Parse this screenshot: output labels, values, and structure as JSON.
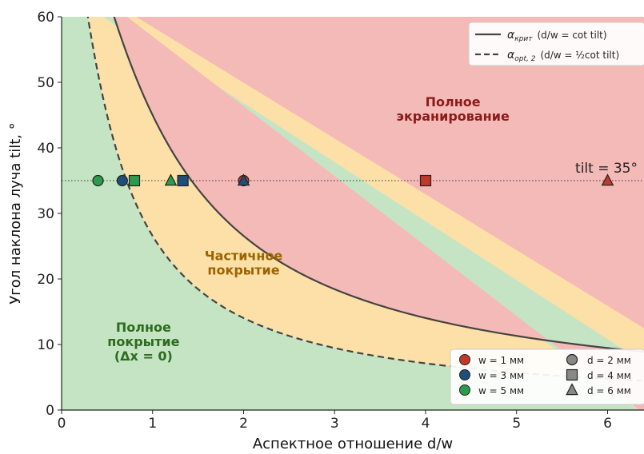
{
  "chart_data": {
    "type": "line",
    "xlabel": "Аспектное отношение d/w",
    "ylabel": "Угол наклона луча tilt, °",
    "xlim": [
      0,
      6.4
    ],
    "ylim": [
      0,
      60
    ],
    "xticks": [
      "0",
      "1",
      "2",
      "3",
      "4",
      "5",
      "6"
    ],
    "yticks": [
      "0",
      "10",
      "20",
      "30",
      "40",
      "50",
      "60"
    ],
    "grid": false,
    "curves": [
      {
        "name": "α_крит",
        "legend_main": "α",
        "legend_sub": "крит",
        "legend_formula": "(d/w = cot tilt)",
        "formula": "d/w = cot(tilt)",
        "style": "solid",
        "color": "#444444"
      },
      {
        "name": "α_opt,2",
        "legend_main": "α",
        "legend_sub": "opt, 2",
        "legend_formula": "(d/w = ½cot tilt)",
        "formula": "d/w = 0.5·cot(tilt)",
        "style": "dashed",
        "color": "#444444"
      }
    ],
    "regions": [
      {
        "lines": [
          "Полное",
          "покрытие",
          "(Δx = 0)"
        ],
        "color": "#c4e4c4",
        "text_color": "#2e6b1e"
      },
      {
        "lines": [
          "Частичное",
          "покрытие"
        ],
        "color": "#fde0a8",
        "text_color": "#9a6400"
      },
      {
        "lines": [
          "Полное",
          "экранирование"
        ],
        "color": "#f4bab7",
        "text_color": "#8b1a1a"
      }
    ],
    "reference_line": {
      "y": 35,
      "label": "tilt = 35°",
      "style": "dotted"
    },
    "points": [
      {
        "w": 5,
        "d": 2,
        "x": 0.4,
        "y": 35,
        "marker": "circle",
        "color": "#2e9a4e"
      },
      {
        "w": 3,
        "d": 2,
        "x": 0.667,
        "y": 35,
        "marker": "circle",
        "color": "#1f4e79"
      },
      {
        "w": 5,
        "d": 4,
        "x": 0.8,
        "y": 35,
        "marker": "square",
        "color": "#2e9a4e"
      },
      {
        "w": 5,
        "d": 6,
        "x": 1.2,
        "y": 35,
        "marker": "triangle",
        "color": "#2e9a4e"
      },
      {
        "w": 3,
        "d": 4,
        "x": 1.333,
        "y": 35,
        "marker": "square",
        "color": "#1f4e79"
      },
      {
        "w": 1,
        "d": 2,
        "x": 2.0,
        "y": 35,
        "marker": "circle",
        "color": "#c0392b"
      },
      {
        "w": 3,
        "d": 6,
        "x": 2.0,
        "y": 35,
        "marker": "triangle",
        "color": "#1f4e79"
      },
      {
        "w": 1,
        "d": 4,
        "x": 4.0,
        "y": 35,
        "marker": "square",
        "color": "#c0392b"
      },
      {
        "w": 1,
        "d": 6,
        "x": 6.0,
        "y": 35,
        "marker": "triangle",
        "color": "#c0392b"
      }
    ],
    "legend_curves_position": "top-right",
    "legend_markers_position": "bottom-right",
    "legend_colors": [
      {
        "label": "w = 1 мм",
        "color": "#c0392b"
      },
      {
        "label": "w = 3 мм",
        "color": "#1f4e79"
      },
      {
        "label": "w = 5 мм",
        "color": "#2e9a4e"
      }
    ],
    "legend_shapes": [
      {
        "label": "d = 2 мм",
        "marker": "circle"
      },
      {
        "label": "d = 4 мм",
        "marker": "square"
      },
      {
        "label": "d = 6 мм",
        "marker": "triangle"
      }
    ]
  }
}
